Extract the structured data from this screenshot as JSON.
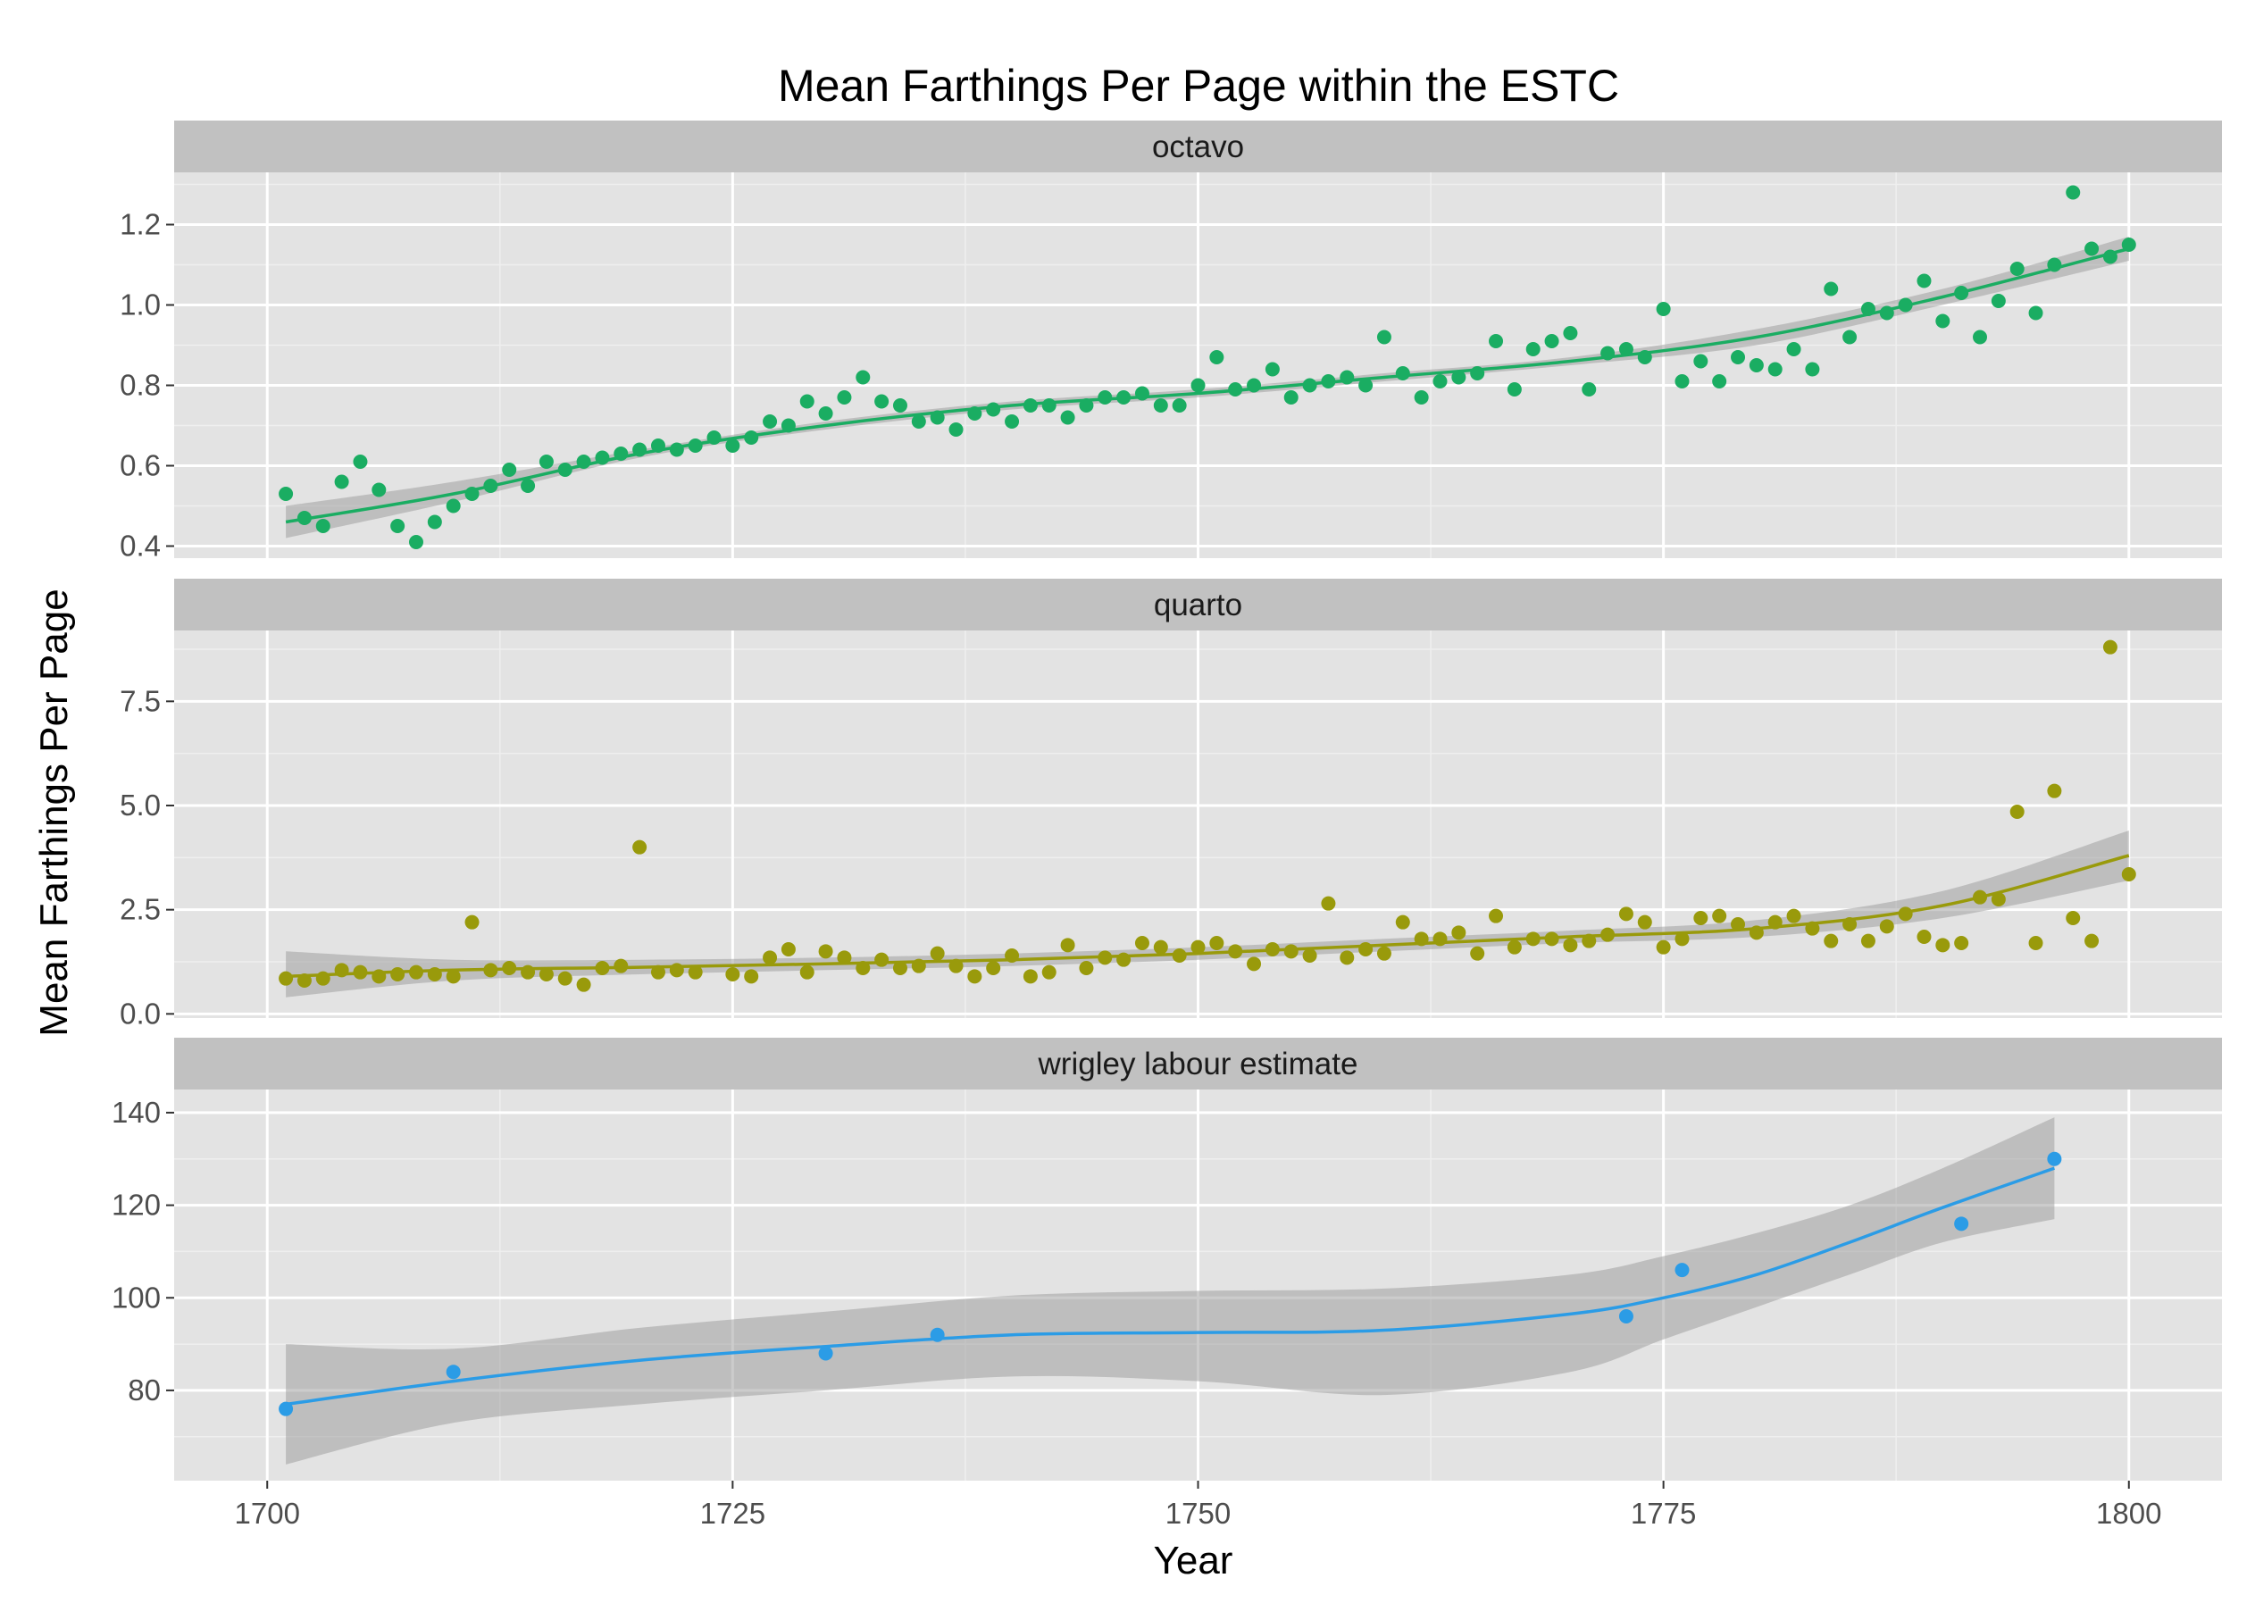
{
  "chart_data": {
    "type": "scatter",
    "title": "Mean Farthings Per Page within the ESTC",
    "xlabel": "Year",
    "ylabel": "Mean Farthings Per Page",
    "xlim": [
      1695,
      1805
    ],
    "x_ticks": [
      1700,
      1725,
      1750,
      1775,
      1800
    ],
    "x_tick_labels": [
      "1700",
      "1725",
      "1750",
      "1775",
      "1800"
    ],
    "grid": true,
    "legend": "none",
    "panels": [
      {
        "name": "octavo",
        "color": "#1aad62",
        "ylim": [
          0.37,
          1.33
        ],
        "y_ticks": [
          0.4,
          0.6,
          0.8,
          1.0,
          1.2
        ],
        "y_tick_labels": [
          "0.4",
          "0.6",
          "0.8",
          "1.0",
          "1.2"
        ],
        "points": {
          "x": [
            1701,
            1702,
            1703,
            1704,
            1705,
            1706,
            1707,
            1708,
            1709,
            1710,
            1711,
            1712,
            1713,
            1714,
            1715,
            1716,
            1717,
            1718,
            1719,
            1720,
            1721,
            1722,
            1723,
            1724,
            1725,
            1726,
            1727,
            1728,
            1729,
            1730,
            1731,
            1732,
            1733,
            1734,
            1735,
            1736,
            1737,
            1738,
            1739,
            1740,
            1741,
            1742,
            1743,
            1744,
            1745,
            1746,
            1747,
            1748,
            1749,
            1750,
            1751,
            1752,
            1753,
            1754,
            1755,
            1756,
            1757,
            1758,
            1759,
            1760,
            1761,
            1762,
            1763,
            1764,
            1765,
            1766,
            1767,
            1768,
            1769,
            1770,
            1771,
            1772,
            1773,
            1774,
            1775,
            1776,
            1777,
            1778,
            1779,
            1780,
            1781,
            1782,
            1783,
            1784,
            1785,
            1786,
            1787,
            1788,
            1789,
            1790,
            1791,
            1792,
            1793,
            1794,
            1795,
            1796,
            1797,
            1798,
            1799,
            1800
          ],
          "y": [
            0.53,
            0.47,
            0.45,
            0.56,
            0.61,
            0.54,
            0.45,
            0.41,
            0.46,
            0.5,
            0.53,
            0.55,
            0.59,
            0.55,
            0.61,
            0.59,
            0.61,
            0.62,
            0.63,
            0.64,
            0.65,
            0.64,
            0.65,
            0.67,
            0.65,
            0.67,
            0.71,
            0.7,
            0.76,
            0.73,
            0.77,
            0.82,
            0.76,
            0.75,
            0.71,
            0.72,
            0.69,
            0.73,
            0.74,
            0.71,
            0.75,
            0.75,
            0.72,
            0.75,
            0.77,
            0.77,
            0.78,
            0.75,
            0.75,
            0.8,
            0.87,
            0.79,
            0.8,
            0.84,
            0.77,
            0.8,
            0.81,
            0.82,
            0.8,
            0.92,
            0.83,
            0.77,
            0.81,
            0.82,
            0.83,
            0.91,
            0.79,
            0.89,
            0.91,
            0.93,
            0.79,
            0.88,
            0.89,
            0.87,
            0.99,
            0.81,
            0.86,
            0.81,
            0.87,
            0.85,
            0.84,
            0.89,
            0.84,
            1.04,
            0.92,
            0.99,
            0.98,
            1.0,
            1.06,
            0.96,
            1.03,
            0.92,
            1.01,
            1.09,
            0.98,
            1.1,
            1.28,
            1.14,
            1.12,
            1.15
          ]
        },
        "smooth": {
          "x": [
            1701,
            1710,
            1720,
            1730,
            1740,
            1750,
            1760,
            1770,
            1780,
            1790,
            1800
          ],
          "y": [
            0.46,
            0.53,
            0.63,
            0.7,
            0.75,
            0.78,
            0.82,
            0.86,
            0.92,
            1.02,
            1.14
          ],
          "lower": [
            0.42,
            0.51,
            0.62,
            0.69,
            0.74,
            0.77,
            0.81,
            0.85,
            0.9,
            1.0,
            1.11
          ],
          "upper": [
            0.5,
            0.56,
            0.64,
            0.71,
            0.76,
            0.79,
            0.83,
            0.87,
            0.94,
            1.04,
            1.17
          ]
        }
      },
      {
        "name": "quarto",
        "color": "#999a0b",
        "ylim": [
          -0.1,
          9.2
        ],
        "y_ticks": [
          0.0,
          2.5,
          5.0,
          7.5
        ],
        "y_tick_labels": [
          "0.0",
          "2.5",
          "5.0",
          "7.5"
        ],
        "points": {
          "x": [
            1701,
            1702,
            1703,
            1704,
            1705,
            1706,
            1707,
            1708,
            1709,
            1710,
            1711,
            1712,
            1713,
            1714,
            1715,
            1716,
            1717,
            1718,
            1719,
            1720,
            1721,
            1722,
            1723,
            1725,
            1726,
            1727,
            1728,
            1729,
            1730,
            1731,
            1732,
            1733,
            1734,
            1735,
            1736,
            1737,
            1738,
            1739,
            1740,
            1741,
            1742,
            1743,
            1744,
            1745,
            1746,
            1747,
            1748,
            1749,
            1750,
            1751,
            1752,
            1753,
            1754,
            1755,
            1756,
            1757,
            1758,
            1759,
            1760,
            1761,
            1762,
            1763,
            1764,
            1765,
            1766,
            1767,
            1768,
            1769,
            1770,
            1771,
            1772,
            1773,
            1774,
            1775,
            1776,
            1777,
            1778,
            1779,
            1780,
            1781,
            1782,
            1783,
            1784,
            1785,
            1786,
            1787,
            1788,
            1789,
            1790,
            1791,
            1792,
            1793,
            1794,
            1795,
            1796,
            1797,
            1798,
            1799,
            1800
          ],
          "y": [
            0.85,
            0.8,
            0.85,
            1.05,
            1.0,
            0.9,
            0.95,
            1.0,
            0.95,
            0.9,
            2.2,
            1.05,
            1.1,
            1.0,
            0.95,
            0.85,
            0.7,
            1.1,
            1.15,
            4.0,
            1.0,
            1.05,
            1.0,
            0.95,
            0.9,
            1.35,
            1.55,
            1.0,
            1.5,
            1.35,
            1.1,
            1.3,
            1.1,
            1.15,
            1.45,
            1.15,
            0.9,
            1.1,
            1.4,
            0.9,
            1.0,
            1.65,
            1.1,
            1.35,
            1.3,
            1.7,
            1.6,
            1.4,
            1.6,
            1.7,
            1.5,
            1.2,
            1.55,
            1.5,
            1.4,
            2.65,
            1.35,
            1.55,
            1.45,
            2.2,
            1.8,
            1.8,
            1.95,
            1.45,
            2.35,
            1.6,
            1.8,
            1.8,
            1.65,
            1.75,
            1.9,
            2.4,
            2.2,
            1.6,
            1.8,
            2.3,
            2.35,
            2.15,
            1.95,
            2.2,
            2.35,
            2.05,
            1.75,
            2.15,
            1.75,
            2.1,
            2.4,
            1.85,
            1.65,
            1.7,
            2.8,
            2.75,
            4.85,
            1.7,
            5.35,
            2.3,
            1.75,
            8.8,
            3.35
          ]
        },
        "smooth": {
          "x": [
            1701,
            1710,
            1720,
            1730,
            1740,
            1750,
            1760,
            1770,
            1780,
            1790,
            1800
          ],
          "y": [
            0.9,
            1.05,
            1.12,
            1.2,
            1.3,
            1.45,
            1.65,
            1.85,
            2.05,
            2.6,
            3.8
          ],
          "lower": [
            0.4,
            0.8,
            0.95,
            1.05,
            1.15,
            1.3,
            1.5,
            1.7,
            1.85,
            2.3,
            3.2
          ],
          "upper": [
            1.5,
            1.3,
            1.3,
            1.35,
            1.45,
            1.6,
            1.8,
            2.0,
            2.25,
            2.95,
            4.4
          ]
        }
      },
      {
        "name": "wrigley labour estimate",
        "color": "#2b9ce6",
        "ylim": [
          60.5,
          145
        ],
        "y_ticks": [
          80,
          100,
          120,
          140
        ],
        "y_tick_labels": [
          "80",
          "100",
          "120",
          "140"
        ],
        "points": {
          "x": [
            1701,
            1710,
            1730,
            1736,
            1773,
            1776,
            1791,
            1796
          ],
          "y": [
            76,
            84,
            88,
            92,
            96,
            106,
            116,
            130
          ]
        },
        "smooth": {
          "x": [
            1701,
            1710,
            1720,
            1730,
            1740,
            1750,
            1760,
            1770,
            1775,
            1780,
            1785,
            1790,
            1796
          ],
          "y": [
            77,
            82,
            86.5,
            89.5,
            92,
            92.5,
            93,
            96.5,
            100,
            105,
            112,
            119.5,
            128
          ],
          "lower": [
            64,
            73,
            77,
            80,
            83,
            82,
            79,
            84,
            91,
            98,
            105,
            112,
            117
          ],
          "upper": [
            90,
            89,
            93.5,
            97,
            100.5,
            101.5,
            102,
            105,
            109,
            114,
            120,
            128,
            139
          ]
        }
      }
    ]
  }
}
